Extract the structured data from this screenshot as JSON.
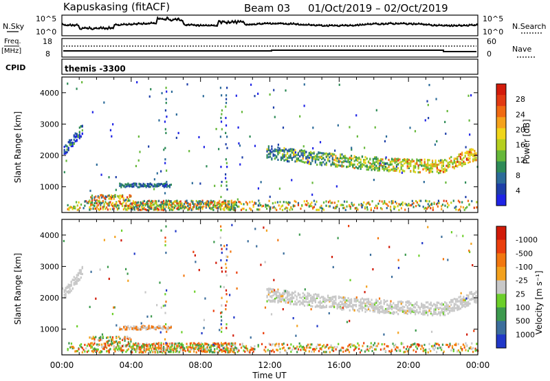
{
  "header": {
    "station": "Kapuskasing (fitACF)",
    "beam": "Beam 03",
    "date_range": "01/Oct/2019 – 02/Oct/2019"
  },
  "params": {
    "nsky_label": "N.Sky",
    "nsearch_label": "N.Search",
    "freq_label": "Freq.",
    "freq_unit": "[MHz]",
    "nave_label": "Nave",
    "cpid_label": "CPID",
    "cpid_value": "themis -3300",
    "nsky_ticks": [
      "10^5",
      "10^0"
    ],
    "nsearch_ticks": [
      "10^5",
      "10^0"
    ],
    "freq_ticks": [
      "18",
      "8"
    ],
    "nave_ticks": [
      "60",
      "0"
    ]
  },
  "chart_data": [
    {
      "type": "heatmap",
      "title": "",
      "xlabel": "",
      "ylabel": "Slant Range [km]",
      "xlim": [
        0,
        24
      ],
      "ylim": [
        180,
        4500
      ],
      "x_tick_labels": [
        "00:00",
        "04:00",
        "08:00",
        "12:00",
        "16:00",
        "20:00",
        "00:00"
      ],
      "y_ticks": [
        1000,
        2000,
        3000,
        4000
      ],
      "colorbar": {
        "label": "Power [dB]",
        "ticks": [
          "4",
          "8",
          "12",
          "16",
          "20",
          "24",
          "28"
        ],
        "colors": [
          "#1f24e6",
          "#1e3fa8",
          "#2c6b99",
          "#2e8b57",
          "#66b83a",
          "#b5cf1f",
          "#f0d51a",
          "#f5a21b",
          "#f06a12",
          "#e23a12",
          "#d31b0b"
        ]
      },
      "features": [
        {
          "name": "echo band 12-24 UT",
          "start_ut": 11.8,
          "end_ut": 23.9,
          "range_start_km": 2250,
          "range_end_km": 1650,
          "dominant_value": 10
        },
        {
          "name": "early echo near start",
          "start_ut": 0.1,
          "end_ut": 1.2,
          "range_start_km": 2000,
          "range_end_km": 2800,
          "dominant_value": 8
        },
        {
          "name": "near-range echoes",
          "start_ut": 1.5,
          "end_ut": 9.5,
          "range_start_km": 600,
          "range_end_km": 300,
          "dominant_value": 14
        }
      ]
    },
    {
      "type": "heatmap",
      "title": "",
      "xlabel": "Time UT",
      "ylabel": "Slant Range [km]",
      "xlim": [
        0,
        24
      ],
      "ylim": [
        180,
        4500
      ],
      "x_tick_labels": [
        "00:00",
        "04:00",
        "08:00",
        "12:00",
        "16:00",
        "20:00",
        "00:00"
      ],
      "y_ticks": [
        1000,
        2000,
        3000,
        4000
      ],
      "colorbar": {
        "label": "Velocity [m s⁻¹]",
        "ticks": [
          "1000",
          "500",
          "100",
          "25",
          "-25",
          "-100",
          "-500",
          "-1000"
        ],
        "colors": [
          "#2138c8",
          "#3c6e9c",
          "#3d9a4e",
          "#6ccf2a",
          "#c8c8c8",
          "#f3a11d",
          "#f2770f",
          "#eb3f0d",
          "#d11a08"
        ]
      },
      "features": [
        {
          "name": "ground scatter band 12-24 UT",
          "start_ut": 11.8,
          "end_ut": 23.9,
          "range_start_km": 2250,
          "range_end_km": 1650,
          "dominant_value": 0
        },
        {
          "name": "near-range echoes",
          "start_ut": 1.5,
          "end_ut": 9.5,
          "range_start_km": 600,
          "range_end_km": 300,
          "dominant_value": -100
        }
      ]
    }
  ]
}
